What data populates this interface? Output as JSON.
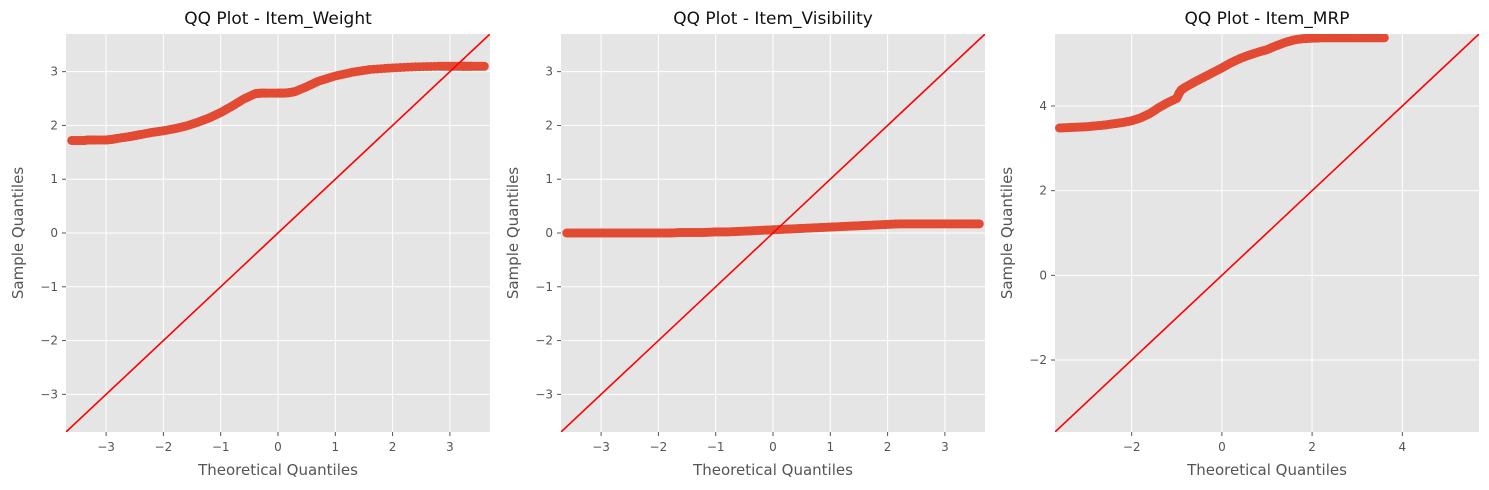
{
  "chart_data": [
    {
      "type": "scatter",
      "title": "QQ Plot - Item_Weight",
      "xlabel": "Theoretical Quantiles",
      "ylabel": "Sample Quantiles",
      "xlim": [
        -3.7,
        3.7
      ],
      "ylim": [
        -3.7,
        3.7
      ],
      "xticks": [
        -3,
        -2,
        -1,
        0,
        1,
        2,
        3
      ],
      "yticks": [
        -3,
        -2,
        -1,
        0,
        1,
        2,
        3
      ],
      "tick_labels_x": [
        "−3",
        "−2",
        "−1",
        "0",
        "1",
        "2",
        "3"
      ],
      "tick_labels_y": [
        "−3",
        "−2",
        "−1",
        "0",
        "1",
        "2",
        "3"
      ],
      "grid": true,
      "reference_line": {
        "slope": 1,
        "intercept": 0,
        "color": "#ff0000"
      },
      "series": [
        {
          "color": "#e24a33",
          "x": [
            -3.6,
            -3.4,
            -3.3,
            -3.2,
            -3.0,
            -2.9,
            -2.8,
            -2.6,
            -2.5,
            -2.4,
            -2.2,
            -2.0,
            -1.8,
            -1.6,
            -1.4,
            -1.2,
            -1.0,
            -0.8,
            -0.6,
            -0.4,
            -0.3,
            -0.2,
            0.0,
            0.1,
            0.2,
            0.3,
            0.5,
            0.7,
            1.0,
            1.3,
            1.6,
            2.0,
            2.4,
            2.8,
            3.0,
            3.2,
            3.3,
            3.4,
            3.6
          ],
          "y": [
            1.72,
            1.72,
            1.73,
            1.73,
            1.73,
            1.74,
            1.76,
            1.79,
            1.81,
            1.83,
            1.87,
            1.9,
            1.94,
            1.99,
            2.06,
            2.14,
            2.24,
            2.36,
            2.49,
            2.59,
            2.6,
            2.6,
            2.6,
            2.6,
            2.61,
            2.63,
            2.72,
            2.82,
            2.92,
            2.99,
            3.04,
            3.07,
            3.09,
            3.1,
            3.1,
            3.1,
            3.1,
            3.1,
            3.1
          ]
        }
      ]
    },
    {
      "type": "scatter",
      "title": "QQ Plot - Item_Visibility",
      "xlabel": "Theoretical Quantiles",
      "ylabel": "Sample Quantiles",
      "xlim": [
        -3.7,
        3.7
      ],
      "ylim": [
        -3.7,
        3.7
      ],
      "xticks": [
        -3,
        -2,
        -1,
        0,
        1,
        2,
        3
      ],
      "yticks": [
        -3,
        -2,
        -1,
        0,
        1,
        2,
        3
      ],
      "tick_labels_x": [
        "−3",
        "−2",
        "−1",
        "0",
        "1",
        "2",
        "3"
      ],
      "tick_labels_y": [
        "−3",
        "−2",
        "−1",
        "0",
        "1",
        "2",
        "3"
      ],
      "grid": true,
      "reference_line": {
        "slope": 1,
        "intercept": 0,
        "color": "#ff0000"
      },
      "series": [
        {
          "color": "#e24a33",
          "x": [
            -3.6,
            -3.4,
            -3.2,
            -3.0,
            -2.8,
            -2.6,
            -2.4,
            -2.2,
            -2.0,
            -1.8,
            -1.6,
            -1.4,
            -1.2,
            -1.0,
            -0.8,
            -0.6,
            -0.4,
            -0.2,
            0.0,
            0.2,
            0.4,
            0.6,
            0.8,
            1.0,
            1.2,
            1.4,
            1.6,
            1.8,
            2.0,
            2.2,
            2.4,
            2.6,
            2.8,
            3.0,
            3.2,
            3.4,
            3.6
          ],
          "y": [
            0.0,
            0.0,
            0.0,
            0.0,
            0.0,
            0.0,
            0.0,
            0.0,
            0.0,
            0.0,
            0.01,
            0.01,
            0.01,
            0.02,
            0.02,
            0.03,
            0.04,
            0.05,
            0.06,
            0.07,
            0.08,
            0.09,
            0.1,
            0.11,
            0.12,
            0.13,
            0.14,
            0.15,
            0.16,
            0.17,
            0.17,
            0.17,
            0.17,
            0.17,
            0.17,
            0.17,
            0.17
          ]
        }
      ]
    },
    {
      "type": "scatter",
      "title": "QQ Plot - Item_MRP",
      "xlabel": "Theoretical Quantiles",
      "ylabel": "Sample Quantiles",
      "xlim": [
        -3.7,
        5.7
      ],
      "ylim": [
        -3.7,
        5.7
      ],
      "xticks": [
        -2,
        0,
        2,
        4
      ],
      "yticks": [
        -2,
        0,
        2,
        4
      ],
      "tick_labels_x": [
        "−2",
        "0",
        "2",
        "4"
      ],
      "tick_labels_y": [
        "−2",
        "0",
        "2",
        "4"
      ],
      "grid": true,
      "reference_line": {
        "slope": 1,
        "intercept": 0,
        "color": "#ff0000"
      },
      "series": [
        {
          "color": "#e24a33",
          "x": [
            -3.6,
            -3.4,
            -3.2,
            -3.0,
            -2.8,
            -2.6,
            -2.4,
            -2.2,
            -2.0,
            -1.8,
            -1.6,
            -1.4,
            -1.2,
            -1.0,
            -0.95,
            -0.9,
            -0.8,
            -0.6,
            -0.4,
            -0.2,
            0.0,
            0.2,
            0.4,
            0.6,
            0.8,
            1.0,
            1.2,
            1.4,
            1.6,
            1.8,
            2.0,
            2.2,
            2.4,
            2.6,
            2.8,
            3.0,
            3.2,
            3.4,
            3.6
          ],
          "y": [
            3.48,
            3.49,
            3.5,
            3.51,
            3.53,
            3.55,
            3.58,
            3.61,
            3.65,
            3.72,
            3.82,
            3.96,
            4.08,
            4.18,
            4.3,
            4.38,
            4.45,
            4.57,
            4.68,
            4.79,
            4.9,
            5.02,
            5.12,
            5.2,
            5.27,
            5.33,
            5.42,
            5.5,
            5.56,
            5.59,
            5.6,
            5.61,
            5.61,
            5.61,
            5.61,
            5.61,
            5.61,
            5.61,
            5.61
          ]
        }
      ]
    }
  ]
}
